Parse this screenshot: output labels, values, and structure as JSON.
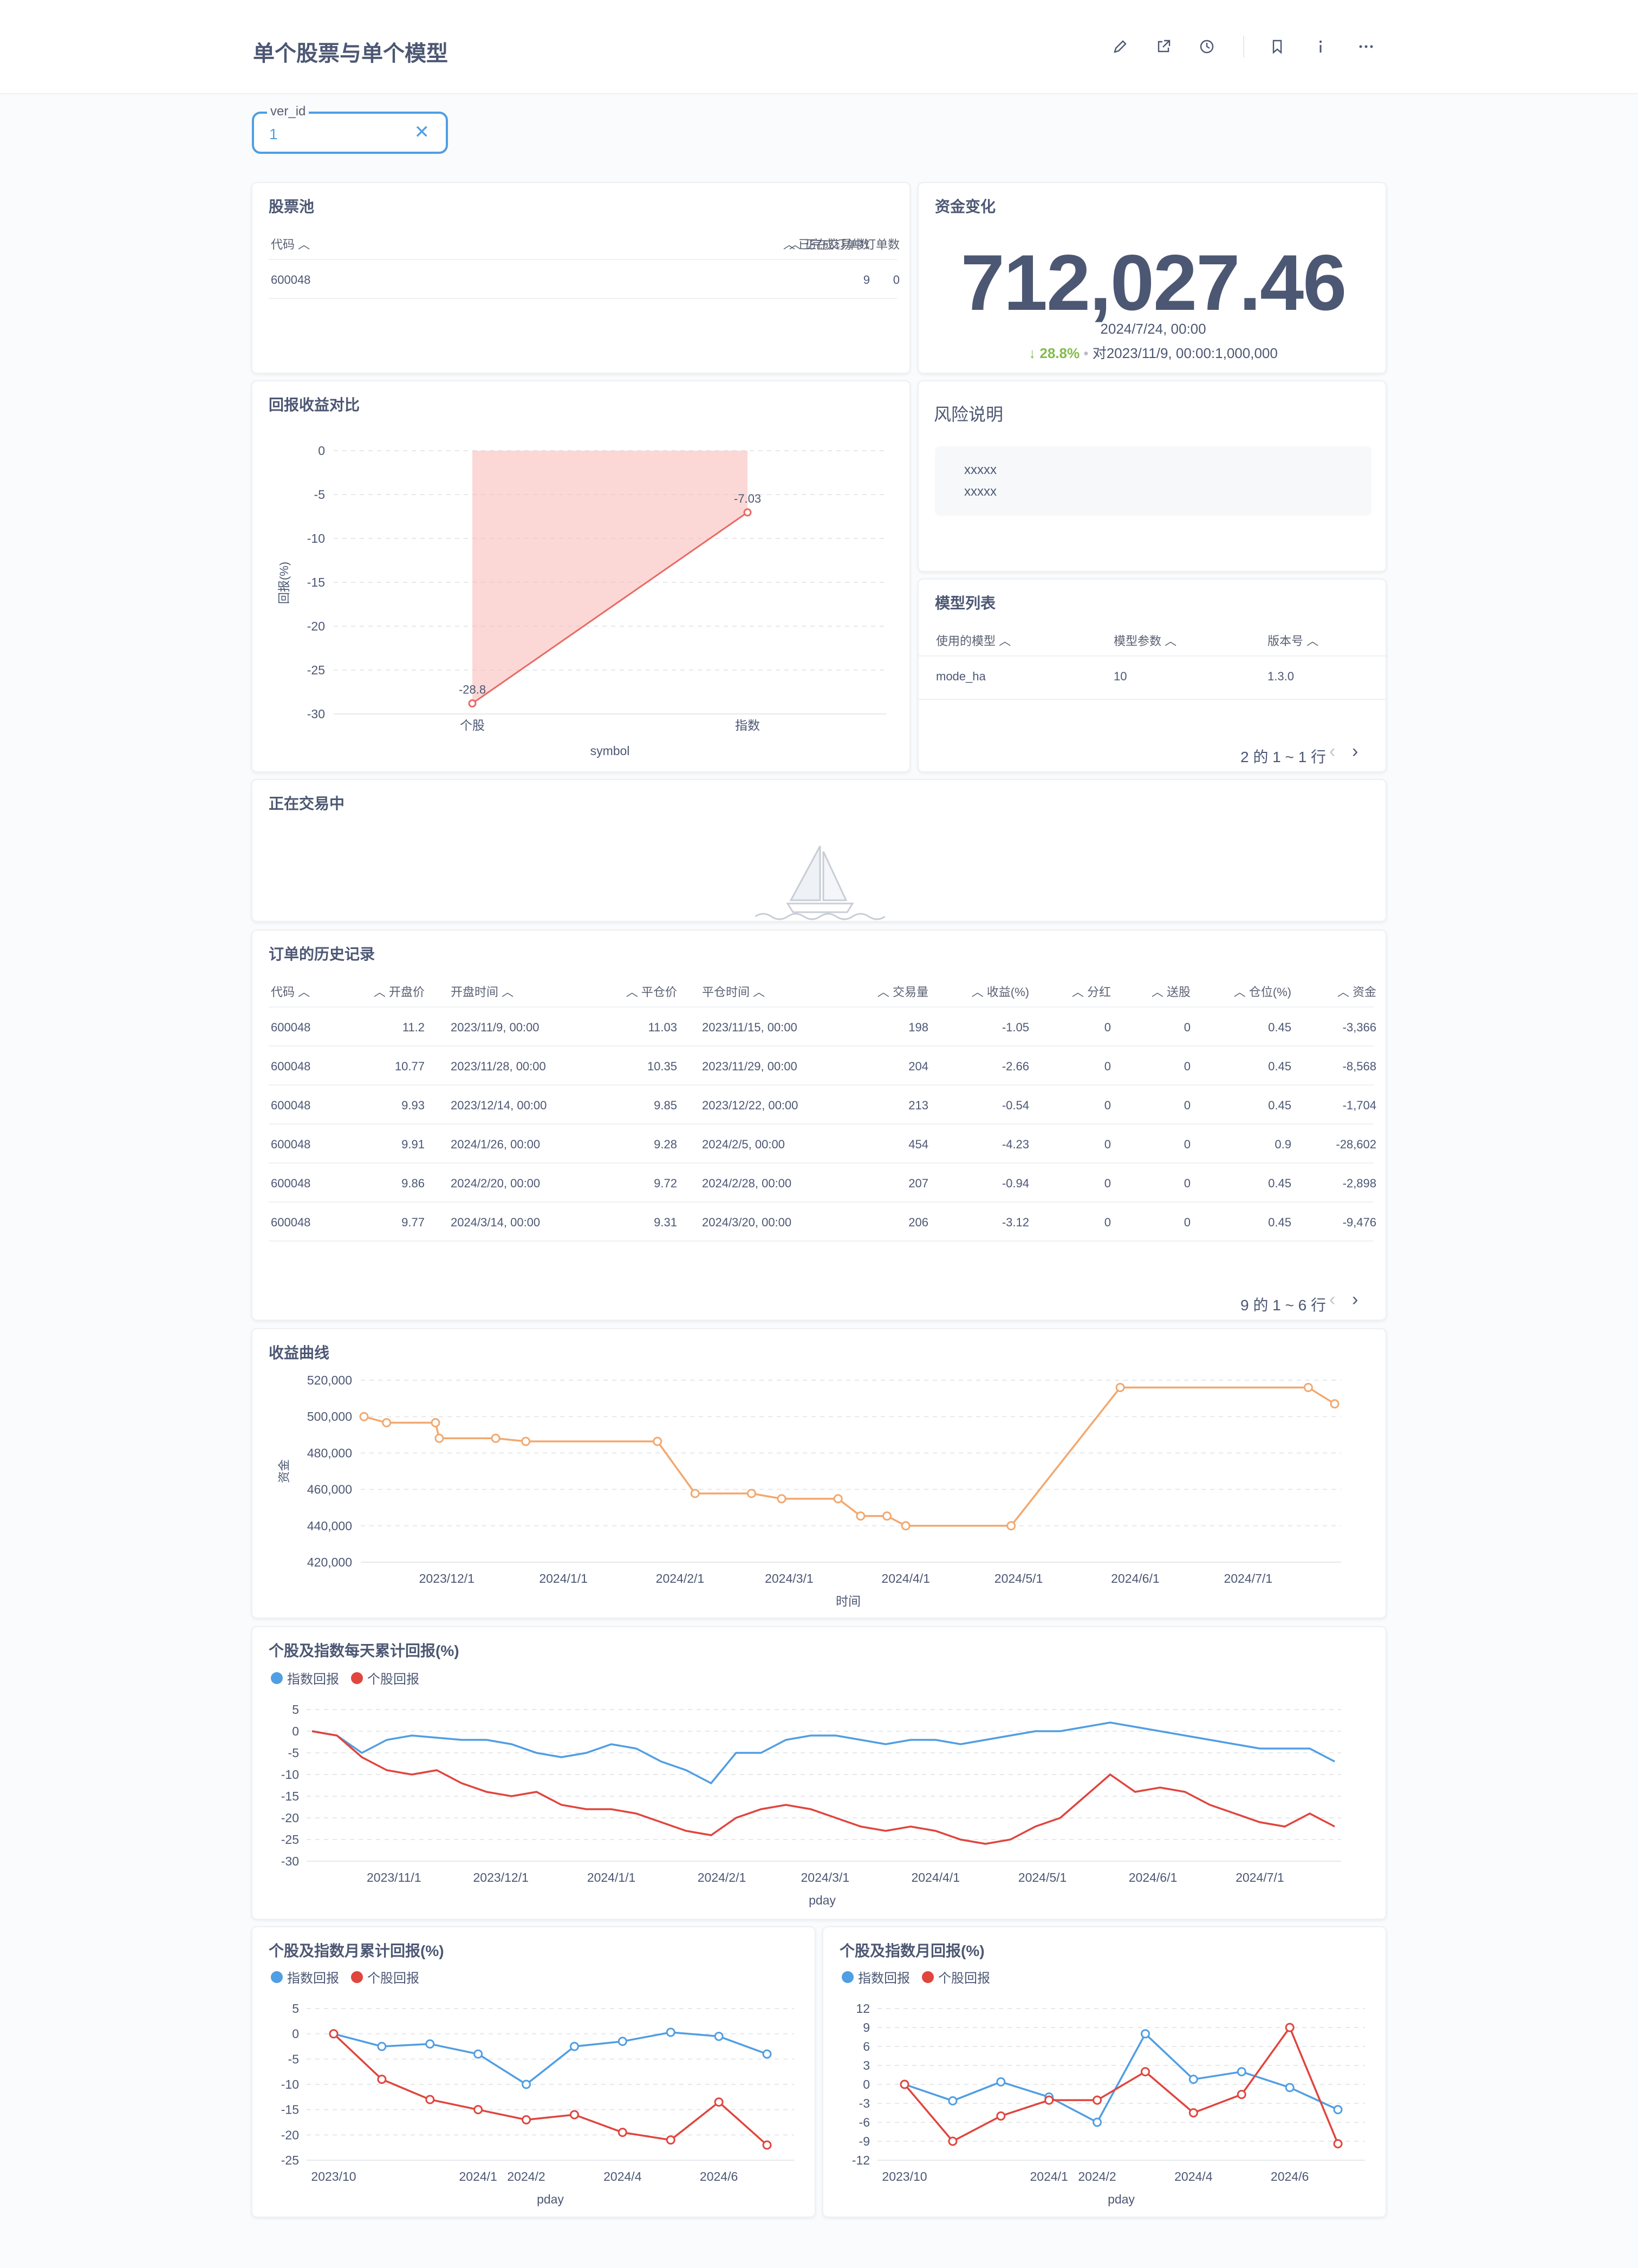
{
  "header": {
    "title": "单个股票与单个模型"
  },
  "filter": {
    "label": "ver_id",
    "value": "1"
  },
  "pool": {
    "title": "股票池",
    "columns": [
      "代码",
      "已完成订单数",
      "正在交易中订单数"
    ],
    "rows": [
      [
        "600048",
        "9",
        "0"
      ]
    ]
  },
  "capital": {
    "title": "资金变化",
    "value": "712,027.46",
    "date": "2024/7/24, 00:00",
    "change": "28.8%",
    "compare": "对2023/11/9, 00:00:1,000,000"
  },
  "risk": {
    "title": "风险说明",
    "lines": [
      "xxxxx",
      "xxxxx"
    ]
  },
  "models": {
    "title": "模型列表",
    "columns": [
      "使用的模型",
      "模型参数",
      "版本号"
    ],
    "rows": [
      [
        "mode_ha",
        "10",
        "1.3.0"
      ]
    ],
    "pager": "2 的 1 ~ 1 行"
  },
  "trading": {
    "title": "正在交易中"
  },
  "history": {
    "title": "订单的历史记录",
    "columns": [
      "代码",
      "开盘价",
      "开盘时间",
      "平仓价",
      "平仓时间",
      "交易量",
      "收益(%)",
      "分红",
      "送股",
      "仓位(%)",
      "资金"
    ],
    "rows": [
      [
        "600048",
        "11.2",
        "2023/11/9, 00:00",
        "11.03",
        "2023/11/15, 00:00",
        "198",
        "-1.05",
        "0",
        "0",
        "0.45",
        "-3,366"
      ],
      [
        "600048",
        "10.77",
        "2023/11/28, 00:00",
        "10.35",
        "2023/11/29, 00:00",
        "204",
        "-2.66",
        "0",
        "0",
        "0.45",
        "-8,568"
      ],
      [
        "600048",
        "9.93",
        "2023/12/14, 00:00",
        "9.85",
        "2023/12/22, 00:00",
        "213",
        "-0.54",
        "0",
        "0",
        "0.45",
        "-1,704"
      ],
      [
        "600048",
        "9.91",
        "2024/1/26, 00:00",
        "9.28",
        "2024/2/5, 00:00",
        "454",
        "-4.23",
        "0",
        "0",
        "0.9",
        "-28,602"
      ],
      [
        "600048",
        "9.86",
        "2024/2/20, 00:00",
        "9.72",
        "2024/2/28, 00:00",
        "207",
        "-0.94",
        "0",
        "0",
        "0.45",
        "-2,898"
      ],
      [
        "600048",
        "9.77",
        "2024/3/14, 00:00",
        "9.31",
        "2024/3/20, 00:00",
        "206",
        "-3.12",
        "0",
        "0",
        "0.45",
        "-9,476"
      ]
    ],
    "pager": "9 的 1 ~ 6 行"
  },
  "colors": {
    "blue": "#509ee3",
    "red": "#e0453e",
    "orange": "#f2a86f",
    "green": "#84bb4c",
    "pink": "#f7b8b5"
  },
  "chart_data": [
    {
      "id": "return-compare",
      "type": "area",
      "title": "回报收益对比",
      "xlabel": "symbol",
      "ylabel": "回报(%)",
      "categories": [
        "个股",
        "指数"
      ],
      "values": [
        -28.8,
        -7.03
      ],
      "data_labels": [
        "-28.8",
        "-7.03"
      ],
      "ylim": [
        -30,
        0
      ],
      "yticks": [
        "0",
        "-5",
        "-10",
        "-15",
        "-20",
        "-25",
        "-30"
      ]
    },
    {
      "id": "profit-curve",
      "type": "line",
      "title": "收益曲线",
      "xlabel": "时间",
      "ylabel": "资金",
      "ylim": [
        420000,
        520000
      ],
      "yticks": [
        "520,000",
        "500,000",
        "480,000",
        "460,000",
        "440,000",
        "420,000"
      ],
      "xticks": [
        "2023/12/1",
        "2024/1/1",
        "2024/2/1",
        "2024/3/1",
        "2024/4/1",
        "2024/5/1",
        "2024/6/1",
        "2024/7/1"
      ],
      "x": [
        "2023/11/9",
        "2023/11/15",
        "2023/11/28",
        "2023/11/29",
        "2023/12/14",
        "2023/12/22",
        "2024/1/26",
        "2024/2/5",
        "2024/2/20",
        "2024/2/28",
        "2024/3/14",
        "2024/3/20",
        "2024/3/27",
        "2024/4/1",
        "2024/4/29",
        "2024/5/28",
        "2024/7/17",
        "2024/7/24"
      ],
      "values": [
        500000,
        496634,
        496634,
        488066,
        488066,
        486362,
        486362,
        457760,
        457760,
        454862,
        454862,
        445386,
        445386,
        440000,
        440000,
        516000,
        516000,
        507000
      ]
    },
    {
      "id": "daily-cum-return",
      "type": "line",
      "title": "个股及指数每天累计回报(%)",
      "xlabel": "pday",
      "legend": [
        "指数回报",
        "个股回报"
      ],
      "ylim": [
        -30,
        5
      ],
      "yticks": [
        "5",
        "0",
        "-5",
        "-10",
        "-15",
        "-20",
        "-25",
        "-30"
      ],
      "xticks": [
        "2023/11/1",
        "2023/12/1",
        "2024/1/1",
        "2024/2/1",
        "2024/3/1",
        "2024/4/1",
        "2024/5/1",
        "2024/6/1",
        "2024/7/1"
      ],
      "x": [
        "2023/10/9",
        "2023/10/16",
        "2023/10/23",
        "2023/10/30",
        "2023/11/6",
        "2023/11/13",
        "2023/11/20",
        "2023/11/27",
        "2023/12/4",
        "2023/12/11",
        "2023/12/18",
        "2023/12/25",
        "2024/1/1",
        "2024/1/8",
        "2024/1/15",
        "2024/1/22",
        "2024/1/29",
        "2024/2/5",
        "2024/2/12",
        "2024/2/19",
        "2024/2/26",
        "2024/3/4",
        "2024/3/11",
        "2024/3/18",
        "2024/3/25",
        "2024/4/1",
        "2024/4/8",
        "2024/4/15",
        "2024/4/22",
        "2024/4/29",
        "2024/5/6",
        "2024/5/13",
        "2024/5/20",
        "2024/5/27",
        "2024/6/3",
        "2024/6/10",
        "2024/6/17",
        "2024/6/24",
        "2024/7/1",
        "2024/7/8",
        "2024/7/15",
        "2024/7/22"
      ],
      "series": [
        {
          "name": "指数回报",
          "values": [
            0,
            -1,
            -5,
            -2,
            -1,
            -1.5,
            -2,
            -2,
            -3,
            -5,
            -6,
            -5,
            -3,
            -4,
            -7,
            -9,
            -12,
            -5,
            -5,
            -2,
            -1,
            -1,
            -2,
            -3,
            -2,
            -2,
            -3,
            -2,
            -1,
            0,
            0,
            1,
            2,
            1,
            0,
            -1,
            -2,
            -3,
            -4,
            -4,
            -4,
            -7
          ]
        },
        {
          "name": "个股回报",
          "values": [
            0,
            -1,
            -6,
            -9,
            -10,
            -9,
            -12,
            -14,
            -15,
            -14,
            -17,
            -18,
            -18,
            -19,
            -21,
            -23,
            -24,
            -20,
            -18,
            -17,
            -18,
            -20,
            -22,
            -23,
            -22,
            -23,
            -25,
            -26,
            -25,
            -22,
            -20,
            -15,
            -10,
            -14,
            -13,
            -14,
            -17,
            -19,
            -21,
            -22,
            -19,
            -22
          ]
        }
      ]
    },
    {
      "id": "monthly-cum-return",
      "type": "line",
      "title": "个股及指数月累计回报(%)",
      "xlabel": "pday",
      "legend": [
        "指数回报",
        "个股回报"
      ],
      "ylim": [
        -25,
        5
      ],
      "yticks": [
        "5",
        "0",
        "-5",
        "-10",
        "-15",
        "-20",
        "-25"
      ],
      "xticks": [
        "2023/10",
        "2024/1",
        "2024/2",
        "2024/4",
        "2024/6"
      ],
      "x": [
        "2023/10",
        "2023/11",
        "2023/12",
        "2024/1",
        "2024/2",
        "2024/3",
        "2024/4",
        "2024/5",
        "2024/6",
        "2024/7"
      ],
      "series": [
        {
          "name": "指数回报",
          "values": [
            0,
            -2.5,
            -2,
            -4,
            -10,
            -2.5,
            -1.5,
            0.3,
            -0.5,
            -4
          ]
        },
        {
          "name": "个股回报",
          "values": [
            0,
            -9,
            -13,
            -15,
            -17,
            -16,
            -19.5,
            -21,
            -13.5,
            -22
          ]
        }
      ]
    },
    {
      "id": "monthly-return",
      "type": "line",
      "title": "个股及指数月回报(%)",
      "xlabel": "pday",
      "legend": [
        "指数回报",
        "个股回报"
      ],
      "ylim": [
        -12,
        12
      ],
      "yticks": [
        "12",
        "9",
        "6",
        "3",
        "0",
        "-3",
        "-6",
        "-9",
        "-12"
      ],
      "xticks": [
        "2023/10",
        "2024/1",
        "2024/2",
        "2024/4",
        "2024/6"
      ],
      "x": [
        "2023/10",
        "2023/11",
        "2023/12",
        "2024/1",
        "2024/2",
        "2024/3",
        "2024/4",
        "2024/5",
        "2024/6",
        "2024/7"
      ],
      "series": [
        {
          "name": "指数回报",
          "values": [
            0,
            -2.6,
            0.4,
            -2,
            -6,
            8,
            0.8,
            2,
            -0.5,
            -4
          ]
        },
        {
          "name": "个股回报",
          "values": [
            0,
            -9,
            -5,
            -2.5,
            -2.5,
            2,
            -4.5,
            -1.6,
            9,
            -9.4
          ]
        }
      ]
    }
  ]
}
